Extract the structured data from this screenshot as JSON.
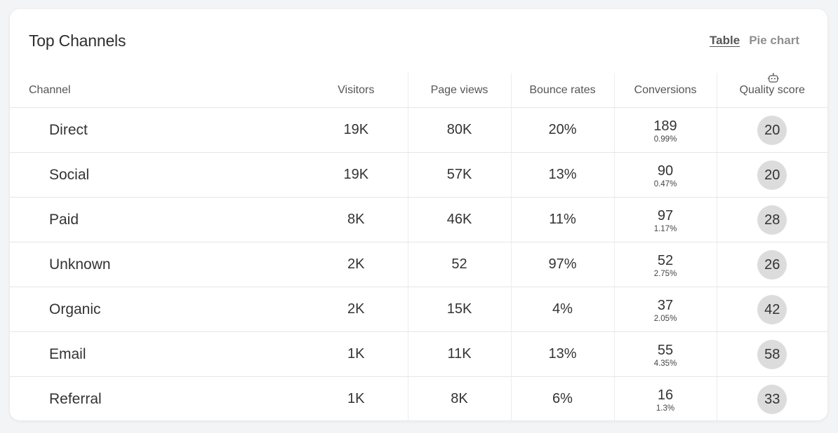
{
  "card": {
    "title": "Top Channels",
    "view_options": [
      {
        "label": "Table",
        "active": true
      },
      {
        "label": "Pie chart",
        "active": false
      }
    ]
  },
  "table": {
    "headers": {
      "channel": "Channel",
      "visitors": "Visitors",
      "page_views": "Page views",
      "bounce_rates": "Bounce rates",
      "conversions": "Conversions",
      "quality_score": "Quality score"
    },
    "quality_icon": "robot-icon",
    "rows": [
      {
        "channel": "Direct",
        "visitors": "19K",
        "page_views": "80K",
        "bounce_rate": "20%",
        "conversions": "189",
        "conversion_rate": "0.99%",
        "quality_score": "20"
      },
      {
        "channel": "Social",
        "visitors": "19K",
        "page_views": "57K",
        "bounce_rate": "13%",
        "conversions": "90",
        "conversion_rate": "0.47%",
        "quality_score": "20"
      },
      {
        "channel": "Paid",
        "visitors": "8K",
        "page_views": "46K",
        "bounce_rate": "11%",
        "conversions": "97",
        "conversion_rate": "1.17%",
        "quality_score": "28"
      },
      {
        "channel": "Unknown",
        "visitors": "2K",
        "page_views": "52",
        "bounce_rate": "97%",
        "conversions": "52",
        "conversion_rate": "2.75%",
        "quality_score": "26"
      },
      {
        "channel": "Organic",
        "visitors": "2K",
        "page_views": "15K",
        "bounce_rate": "4%",
        "conversions": "37",
        "conversion_rate": "2.05%",
        "quality_score": "42"
      },
      {
        "channel": "Email",
        "visitors": "1K",
        "page_views": "11K",
        "bounce_rate": "13%",
        "conversions": "55",
        "conversion_rate": "4.35%",
        "quality_score": "58"
      },
      {
        "channel": "Referral",
        "visitors": "1K",
        "page_views": "8K",
        "bounce_rate": "6%",
        "conversions": "16",
        "conversion_rate": "1.3%",
        "quality_score": "33"
      }
    ]
  },
  "colors": {
    "page_background": "#f3f4f5",
    "card_background": "#ffffff",
    "score_badge": "#dcdcdc",
    "divider": "#e6e6e6",
    "toggle_active": "#555555",
    "toggle_inactive": "#8f8f8f"
  }
}
